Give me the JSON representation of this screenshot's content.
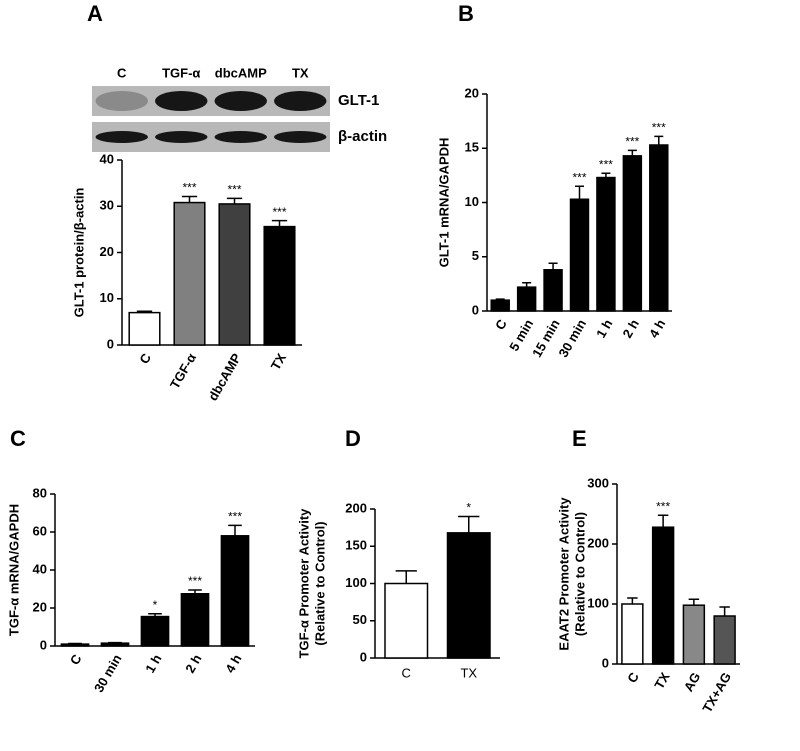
{
  "chart_data": [
    {
      "type": "bar",
      "panel": "A",
      "ylabel": "GLT-1 protein/β-actin",
      "blot": {
        "lanes": [
          "C",
          "TGF-α",
          "dbcAMP",
          "TX"
        ],
        "bands": [
          "GLT-1",
          "β-actin"
        ]
      },
      "categories": [
        "C",
        "TGF-α",
        "dbcAMP",
        "TX"
      ],
      "values": [
        7,
        30.8,
        30.5,
        25.6
      ],
      "errors": [
        0.3,
        1.3,
        1.2,
        1.3
      ],
      "colors": [
        "#ffffff",
        "#808080",
        "#404040",
        "#000000"
      ],
      "significance": [
        null,
        "***",
        "***",
        "***"
      ],
      "ylim": [
        0,
        40
      ],
      "yticks": [
        0,
        10,
        20,
        30,
        40
      ]
    },
    {
      "type": "bar",
      "panel": "B",
      "ylabel": "GLT-1 mRNA/GAPDH",
      "categories": [
        "C",
        "5 min",
        "15 min",
        "30 min",
        "1 h",
        "2 h",
        "4 h"
      ],
      "values": [
        1.0,
        2.2,
        3.8,
        10.3,
        12.3,
        14.3,
        15.3
      ],
      "errors": [
        0.1,
        0.4,
        0.6,
        1.2,
        0.4,
        0.5,
        0.8
      ],
      "colors": [
        "#000000",
        "#000000",
        "#000000",
        "#000000",
        "#000000",
        "#000000",
        "#000000"
      ],
      "significance": [
        null,
        null,
        null,
        "***",
        "***",
        "***",
        "***"
      ],
      "ylim": [
        0,
        20
      ],
      "yticks": [
        0,
        5,
        10,
        15,
        20
      ]
    },
    {
      "type": "bar",
      "panel": "C",
      "ylabel": "TGF-α mRNA/GAPDH",
      "categories": [
        "C",
        "30 min",
        "1 h",
        "2 h",
        "4 h"
      ],
      "values": [
        1,
        1.5,
        15.5,
        27.5,
        58
      ],
      "errors": [
        0.3,
        0.3,
        1.5,
        2,
        5.5
      ],
      "colors": [
        "#000000",
        "#000000",
        "#000000",
        "#000000",
        "#000000"
      ],
      "significance": [
        null,
        null,
        "*",
        "***",
        "***"
      ],
      "ylim": [
        0,
        80
      ],
      "yticks": [
        0,
        20,
        40,
        60,
        80
      ]
    },
    {
      "type": "bar",
      "panel": "D",
      "ylabel": [
        "TGF-α Promoter Activity",
        "(Relative to Control)"
      ],
      "categories": [
        "C",
        "TX"
      ],
      "values": [
        100,
        168
      ],
      "errors": [
        17,
        22
      ],
      "colors": [
        "#ffffff",
        "#000000"
      ],
      "significance": [
        null,
        "*"
      ],
      "ylim": [
        0,
        200
      ],
      "yticks": [
        0,
        50,
        100,
        150,
        200
      ]
    },
    {
      "type": "bar",
      "panel": "E",
      "ylabel": [
        "EAAT2 Promoter Activity",
        "(Relative to Control)"
      ],
      "categories": [
        "C",
        "TX",
        "AG",
        "TX+AG"
      ],
      "values": [
        100,
        228,
        98,
        80
      ],
      "errors": [
        10,
        20,
        10,
        15
      ],
      "colors": [
        "#ffffff",
        "#000000",
        "#888888",
        "#555555"
      ],
      "significance": [
        null,
        "***",
        null,
        null
      ],
      "ylim": [
        0,
        300
      ],
      "yticks": [
        0,
        100,
        200,
        300
      ]
    }
  ]
}
